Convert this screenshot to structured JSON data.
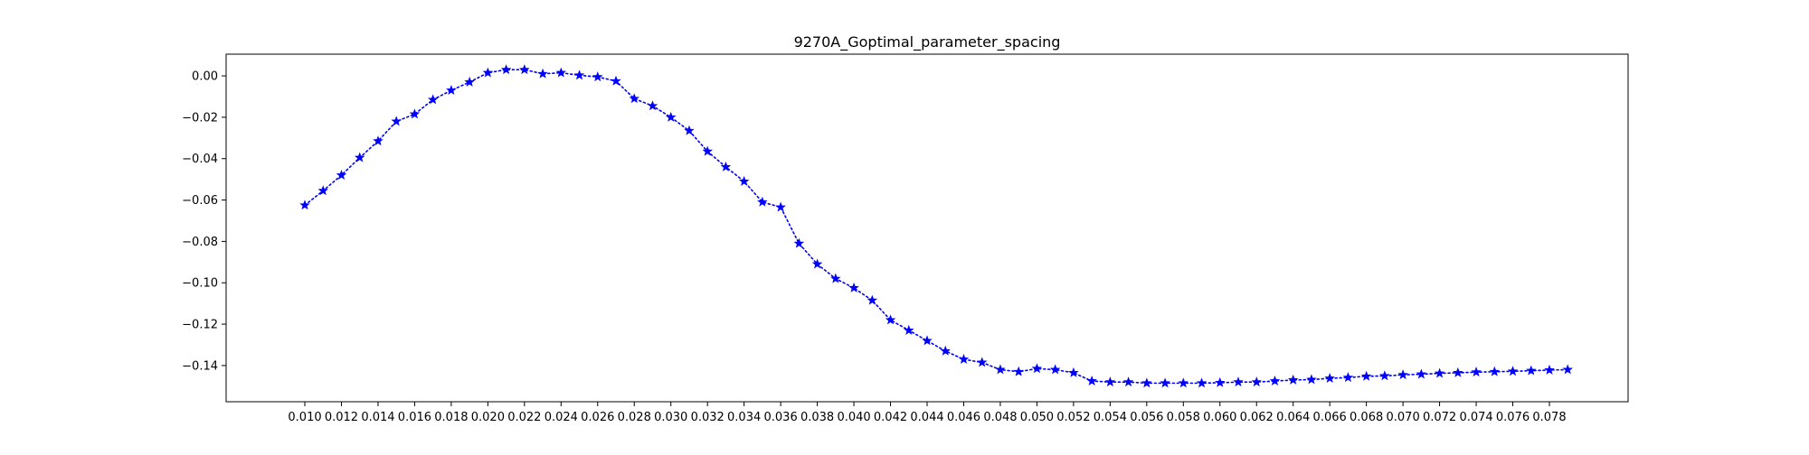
{
  "chart_data": {
    "type": "line",
    "title": "9270A_Goptimal_parameter_spacing",
    "xlabel": "",
    "ylabel": "",
    "xlim": [
      0.0057,
      0.0823
    ],
    "ylim": [
      -0.1575,
      0.0105
    ],
    "xticks": [
      0.01,
      0.012,
      0.014,
      0.016,
      0.018,
      0.02,
      0.022,
      0.024,
      0.026,
      0.028,
      0.03,
      0.032,
      0.034,
      0.036,
      0.038,
      0.04,
      0.042,
      0.044,
      0.046,
      0.048,
      0.05,
      0.052,
      0.054,
      0.056,
      0.058,
      0.06,
      0.062,
      0.064,
      0.066,
      0.068,
      0.07,
      0.072,
      0.074,
      0.076,
      0.078
    ],
    "xtick_labels": [
      "0.010",
      "0.012",
      "0.014",
      "0.016",
      "0.018",
      "0.020",
      "0.022",
      "0.024",
      "0.026",
      "0.028",
      "0.030",
      "0.032",
      "0.034",
      "0.036",
      "0.038",
      "0.040",
      "0.042",
      "0.044",
      "0.046",
      "0.048",
      "0.050",
      "0.052",
      "0.054",
      "0.056",
      "0.058",
      "0.060",
      "0.062",
      "0.064",
      "0.066",
      "0.068",
      "0.070",
      "0.072",
      "0.074",
      "0.076",
      "0.078"
    ],
    "yticks": [
      0.0,
      -0.02,
      -0.04,
      -0.06,
      -0.08,
      -0.1,
      -0.12,
      -0.14
    ],
    "ytick_labels": [
      "0.00",
      "−0.02",
      "−0.04",
      "−0.06",
      "−0.08",
      "−0.10",
      "−0.12",
      "−0.14"
    ],
    "grid": false,
    "series": [
      {
        "color": "#0000ff",
        "line_style": "dotted",
        "marker": "star",
        "x": [
          0.01,
          0.011,
          0.012,
          0.013,
          0.014,
          0.015,
          0.016,
          0.017,
          0.018,
          0.019,
          0.02,
          0.021,
          0.022,
          0.023,
          0.024,
          0.025,
          0.026,
          0.027,
          0.028,
          0.029,
          0.03,
          0.031,
          0.032,
          0.033,
          0.034,
          0.035,
          0.036,
          0.037,
          0.038,
          0.039,
          0.04,
          0.041,
          0.042,
          0.043,
          0.044,
          0.045,
          0.046,
          0.047,
          0.048,
          0.049,
          0.05,
          0.051,
          0.052,
          0.053,
          0.054,
          0.055,
          0.056,
          0.057,
          0.058,
          0.059,
          0.06,
          0.061,
          0.062,
          0.063,
          0.064,
          0.065,
          0.066,
          0.067,
          0.068,
          0.069,
          0.07,
          0.071,
          0.072,
          0.073,
          0.074,
          0.075,
          0.076,
          0.077,
          0.078,
          0.079
        ],
        "y": [
          -0.0625,
          -0.0555,
          -0.048,
          -0.0395,
          -0.0315,
          -0.022,
          -0.0185,
          -0.0115,
          -0.007,
          -0.003,
          0.0015,
          0.003,
          0.003,
          0.001,
          0.0015,
          0.0003,
          -0.0005,
          -0.0025,
          -0.011,
          -0.0145,
          -0.02,
          -0.0265,
          -0.0365,
          -0.044,
          -0.051,
          -0.061,
          -0.0635,
          -0.081,
          -0.091,
          -0.098,
          -0.1025,
          -0.1085,
          -0.118,
          -0.123,
          -0.128,
          -0.133,
          -0.137,
          -0.1385,
          -0.142,
          -0.143,
          -0.1415,
          -0.142,
          -0.1435,
          -0.1475,
          -0.148,
          -0.148,
          -0.1485,
          -0.1485,
          -0.1485,
          -0.1485,
          -0.1483,
          -0.148,
          -0.148,
          -0.1475,
          -0.147,
          -0.1468,
          -0.1462,
          -0.1458,
          -0.1452,
          -0.145,
          -0.1445,
          -0.1442,
          -0.1438,
          -0.1435,
          -0.1432,
          -0.143,
          -0.1428,
          -0.1425,
          -0.1422,
          -0.142
        ]
      }
    ]
  }
}
